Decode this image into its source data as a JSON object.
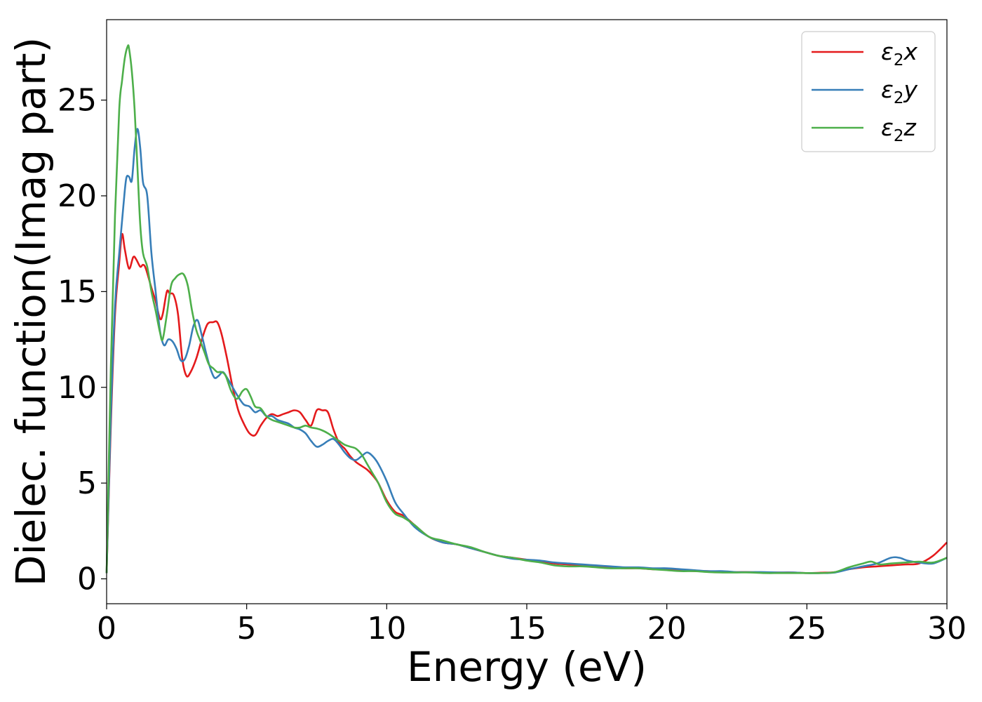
{
  "chart_data": {
    "type": "line",
    "title": "",
    "xlabel": "Energy (eV)",
    "ylabel": "Dielec. function(Imag part)",
    "xlim": [
      0,
      30
    ],
    "ylim": [
      -1.3,
      29.2
    ],
    "xticks": [
      0,
      5,
      10,
      15,
      20,
      25,
      30
    ],
    "yticks": [
      0,
      5,
      10,
      15,
      20,
      25
    ],
    "grid": false,
    "legend_position": "top-right",
    "series": [
      {
        "name": "ε₂x",
        "label_main": "ε",
        "label_sub": "2",
        "label_tail": "x",
        "color": "#e41a1c",
        "x": [
          0,
          0.15,
          0.3,
          0.45,
          0.55,
          0.65,
          0.8,
          0.95,
          1.05,
          1.2,
          1.3,
          1.4,
          1.6,
          1.75,
          1.9,
          2.0,
          2.15,
          2.25,
          2.4,
          2.55,
          2.7,
          2.85,
          3.0,
          3.2,
          3.4,
          3.6,
          3.8,
          3.95,
          4.1,
          4.3,
          4.5,
          4.7,
          4.9,
          5.1,
          5.3,
          5.5,
          5.7,
          5.9,
          6.1,
          6.3,
          6.5,
          6.7,
          6.9,
          7.1,
          7.3,
          7.5,
          7.7,
          7.9,
          8.1,
          8.3,
          8.5,
          8.7,
          8.9,
          9.1,
          9.3,
          9.5,
          9.7,
          10.0,
          10.3,
          10.6,
          11.0,
          11.5,
          12.0,
          12.5,
          13.0,
          13.5,
          14.0,
          14.5,
          15.0,
          15.5,
          16.0,
          16.5,
          17.0,
          17.5,
          18.0,
          18.5,
          19.0,
          19.5,
          20.0,
          20.5,
          21.0,
          21.5,
          22.0,
          22.5,
          23.0,
          23.5,
          24.0,
          24.5,
          25.0,
          25.5,
          26.0,
          26.5,
          27.0,
          27.5,
          28.0,
          28.5,
          29.0,
          29.5,
          30.0
        ],
        "y": [
          0.3,
          8.0,
          13.8,
          16.5,
          18.0,
          17.2,
          16.2,
          16.8,
          16.7,
          16.3,
          16.4,
          16.2,
          15.2,
          14.5,
          13.6,
          13.8,
          15.0,
          14.9,
          14.8,
          13.8,
          11.5,
          10.6,
          10.8,
          11.5,
          12.5,
          13.3,
          13.4,
          13.4,
          12.8,
          11.5,
          10.0,
          8.8,
          8.1,
          7.6,
          7.5,
          8.0,
          8.4,
          8.6,
          8.5,
          8.6,
          8.7,
          8.8,
          8.7,
          8.3,
          8.0,
          8.8,
          8.8,
          8.7,
          7.8,
          7.1,
          6.8,
          6.4,
          6.1,
          5.9,
          5.7,
          5.4,
          5.0,
          4.1,
          3.5,
          3.3,
          2.8,
          2.2,
          1.9,
          1.8,
          1.6,
          1.4,
          1.2,
          1.1,
          1.0,
          0.9,
          0.8,
          0.75,
          0.7,
          0.65,
          0.6,
          0.55,
          0.55,
          0.5,
          0.5,
          0.45,
          0.4,
          0.4,
          0.35,
          0.35,
          0.35,
          0.33,
          0.33,
          0.33,
          0.3,
          0.32,
          0.35,
          0.5,
          0.6,
          0.65,
          0.7,
          0.75,
          0.8,
          1.2,
          1.9
        ]
      },
      {
        "name": "ε₂y",
        "label_main": "ε",
        "label_sub": "2",
        "label_tail": "y",
        "color": "#377eb8",
        "x": [
          0,
          0.15,
          0.3,
          0.45,
          0.6,
          0.7,
          0.8,
          0.9,
          1.0,
          1.1,
          1.2,
          1.3,
          1.45,
          1.6,
          1.75,
          1.9,
          2.05,
          2.2,
          2.35,
          2.5,
          2.65,
          2.8,
          2.95,
          3.1,
          3.25,
          3.4,
          3.55,
          3.7,
          3.85,
          4.0,
          4.15,
          4.3,
          4.5,
          4.7,
          4.9,
          5.1,
          5.3,
          5.5,
          5.7,
          5.9,
          6.1,
          6.3,
          6.5,
          6.7,
          6.9,
          7.1,
          7.3,
          7.5,
          7.7,
          7.9,
          8.1,
          8.3,
          8.5,
          8.7,
          8.9,
          9.1,
          9.3,
          9.5,
          9.7,
          10.0,
          10.3,
          10.6,
          11.0,
          11.5,
          12.0,
          12.5,
          13.0,
          13.5,
          14.0,
          14.5,
          15.0,
          15.5,
          16.0,
          16.5,
          17.0,
          17.5,
          18.0,
          18.5,
          19.0,
          19.5,
          20.0,
          20.5,
          21.0,
          21.5,
          22.0,
          22.5,
          23.0,
          23.5,
          24.0,
          24.5,
          25.0,
          25.5,
          26.0,
          26.5,
          27.0,
          27.5,
          28.0,
          28.3,
          28.6,
          29.0,
          29.5,
          30.0
        ],
        "y": [
          0.3,
          8.5,
          14.3,
          17.0,
          19.5,
          20.9,
          21.0,
          20.8,
          22.5,
          23.5,
          22.5,
          20.7,
          20.0,
          17.0,
          15.0,
          13.0,
          12.2,
          12.5,
          12.4,
          12.0,
          11.4,
          11.5,
          12.2,
          13.2,
          13.5,
          12.7,
          11.8,
          11.0,
          10.5,
          10.6,
          10.8,
          10.5,
          10.0,
          9.5,
          9.1,
          9.0,
          8.7,
          8.8,
          8.5,
          8.5,
          8.3,
          8.2,
          8.1,
          7.9,
          7.8,
          7.6,
          7.2,
          6.9,
          7.0,
          7.2,
          7.3,
          7.0,
          6.6,
          6.3,
          6.2,
          6.4,
          6.6,
          6.4,
          6.0,
          5.1,
          4.0,
          3.4,
          2.7,
          2.2,
          1.9,
          1.8,
          1.6,
          1.4,
          1.2,
          1.05,
          1.0,
          0.95,
          0.85,
          0.8,
          0.75,
          0.7,
          0.65,
          0.6,
          0.6,
          0.55,
          0.55,
          0.5,
          0.45,
          0.4,
          0.4,
          0.35,
          0.35,
          0.35,
          0.33,
          0.33,
          0.3,
          0.3,
          0.33,
          0.5,
          0.65,
          0.8,
          1.1,
          1.1,
          0.95,
          0.85,
          0.8,
          1.1
        ]
      },
      {
        "name": "ε₂z",
        "label_main": "ε",
        "label_sub": "2",
        "label_tail": "z",
        "color": "#4daf4a",
        "x": [
          0,
          0.15,
          0.3,
          0.45,
          0.55,
          0.65,
          0.75,
          0.8,
          0.9,
          1.0,
          1.1,
          1.2,
          1.3,
          1.45,
          1.6,
          1.75,
          1.9,
          2.0,
          2.15,
          2.3,
          2.45,
          2.6,
          2.75,
          2.9,
          3.05,
          3.2,
          3.35,
          3.5,
          3.65,
          3.8,
          3.95,
          4.1,
          4.25,
          4.45,
          4.65,
          4.85,
          5.0,
          5.15,
          5.3,
          5.5,
          5.7,
          5.9,
          6.1,
          6.3,
          6.5,
          6.7,
          6.9,
          7.1,
          7.3,
          7.5,
          7.7,
          7.9,
          8.1,
          8.3,
          8.5,
          8.7,
          8.9,
          9.1,
          9.3,
          9.5,
          9.7,
          10.0,
          10.3,
          10.6,
          11.0,
          11.5,
          12.0,
          12.5,
          13.0,
          13.5,
          14.0,
          14.5,
          15.0,
          15.5,
          16.0,
          16.5,
          17.0,
          17.5,
          18.0,
          18.5,
          19.0,
          19.5,
          20.0,
          20.5,
          21.0,
          21.5,
          22.0,
          22.5,
          23.0,
          23.5,
          24.0,
          24.5,
          25.0,
          25.5,
          26.0,
          26.5,
          27.0,
          27.3,
          27.6,
          28.0,
          28.5,
          29.0,
          29.5,
          30.0
        ],
        "y": [
          0.3,
          11.0,
          19.0,
          24.5,
          26.0,
          27.2,
          27.8,
          27.7,
          26.5,
          24.5,
          21.5,
          18.5,
          17.0,
          16.3,
          15.0,
          14.0,
          12.9,
          12.5,
          13.8,
          15.3,
          15.7,
          15.9,
          15.9,
          15.3,
          14.0,
          13.0,
          12.4,
          11.8,
          11.2,
          11.0,
          10.8,
          10.8,
          10.6,
          9.8,
          9.4,
          9.8,
          9.9,
          9.5,
          9.0,
          8.9,
          8.5,
          8.3,
          8.2,
          8.1,
          8.0,
          7.9,
          7.9,
          8.0,
          7.9,
          7.85,
          7.75,
          7.6,
          7.4,
          7.2,
          7.0,
          6.9,
          6.8,
          6.5,
          6.0,
          5.5,
          5.0,
          4.0,
          3.4,
          3.2,
          2.8,
          2.2,
          2.0,
          1.8,
          1.65,
          1.4,
          1.2,
          1.1,
          0.95,
          0.85,
          0.7,
          0.65,
          0.65,
          0.6,
          0.55,
          0.55,
          0.55,
          0.5,
          0.45,
          0.4,
          0.4,
          0.35,
          0.33,
          0.33,
          0.33,
          0.3,
          0.3,
          0.3,
          0.3,
          0.3,
          0.35,
          0.6,
          0.8,
          0.9,
          0.75,
          0.8,
          0.85,
          0.9,
          0.85,
          1.1
        ]
      }
    ]
  }
}
